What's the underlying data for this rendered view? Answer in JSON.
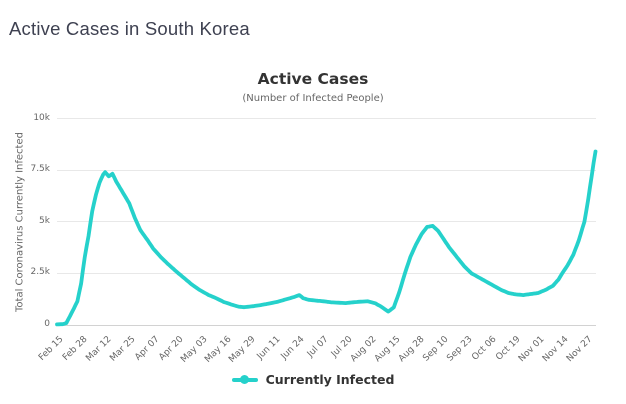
{
  "page": {
    "title": "Active Cases in South Korea"
  },
  "chart_data": {
    "type": "line",
    "title": "Active Cases",
    "subtitle": "(Number of Infected People)",
    "ylabel": "Total Coronavirus Currently Infected",
    "xlabel": "",
    "ylim": [
      0,
      10000
    ],
    "ytick_values": [
      0,
      2500,
      5000,
      7500,
      10000
    ],
    "ytick_labels": [
      "0",
      "2.5k",
      "5k",
      "7.5k",
      "10k"
    ],
    "x_tick_labels": [
      "Feb 15",
      "Feb 28",
      "Mar 12",
      "Mar 25",
      "Apr 07",
      "Apr 20",
      "May 03",
      "May 16",
      "May 29",
      "Jun 11",
      "Jun 24",
      "Jul 07",
      "Jul 20",
      "Aug 02",
      "Aug 15",
      "Aug 28",
      "Sep 10",
      "Sep 23",
      "Oct 06",
      "Oct 19",
      "Nov 01",
      "Nov 14",
      "Nov 27"
    ],
    "x_tick_interval_days": 13,
    "x_total_days": 291,
    "x_unit": "days since Feb 15",
    "grid": true,
    "legend_position": "bottom",
    "colors": {
      "line": "#25d1cb",
      "grid": "#e8e8e8",
      "axis_line": "#d2d2d2",
      "tick_text": "#666666",
      "title_text": "#333333",
      "subtitle_text": "#666666",
      "legend_text": "#333333",
      "page_title_text": "#3e4151"
    },
    "series": [
      {
        "name": "Currently Infected",
        "points": [
          [
            0,
            30
          ],
          [
            3,
            40
          ],
          [
            5,
            90
          ],
          [
            7,
            430
          ],
          [
            9,
            780
          ],
          [
            11,
            1150
          ],
          [
            13,
            2000
          ],
          [
            15,
            3300
          ],
          [
            17,
            4300
          ],
          [
            19,
            5500
          ],
          [
            21,
            6300
          ],
          [
            23,
            6900
          ],
          [
            25,
            7300
          ],
          [
            26,
            7400
          ],
          [
            28,
            7200
          ],
          [
            30,
            7320
          ],
          [
            32,
            6950
          ],
          [
            35,
            6500
          ],
          [
            39,
            5900
          ],
          [
            42,
            5200
          ],
          [
            45,
            4600
          ],
          [
            49,
            4100
          ],
          [
            52,
            3700
          ],
          [
            56,
            3300
          ],
          [
            60,
            2950
          ],
          [
            65,
            2550
          ],
          [
            69,
            2250
          ],
          [
            73,
            1950
          ],
          [
            77,
            1700
          ],
          [
            82,
            1450
          ],
          [
            86,
            1300
          ],
          [
            90,
            1120
          ],
          [
            94,
            1000
          ],
          [
            98,
            890
          ],
          [
            101,
            860
          ],
          [
            105,
            900
          ],
          [
            109,
            950
          ],
          [
            114,
            1030
          ],
          [
            119,
            1120
          ],
          [
            124,
            1250
          ],
          [
            128,
            1350
          ],
          [
            131,
            1450
          ],
          [
            133,
            1300
          ],
          [
            136,
            1220
          ],
          [
            140,
            1180
          ],
          [
            144,
            1150
          ],
          [
            148,
            1100
          ],
          [
            152,
            1080
          ],
          [
            156,
            1060
          ],
          [
            160,
            1100
          ],
          [
            164,
            1130
          ],
          [
            168,
            1150
          ],
          [
            172,
            1050
          ],
          [
            175,
            900
          ],
          [
            179,
            650
          ],
          [
            182,
            850
          ],
          [
            185,
            1600
          ],
          [
            188,
            2500
          ],
          [
            191,
            3300
          ],
          [
            194,
            3900
          ],
          [
            197,
            4400
          ],
          [
            200,
            4750
          ],
          [
            203,
            4800
          ],
          [
            206,
            4550
          ],
          [
            209,
            4150
          ],
          [
            212,
            3750
          ],
          [
            216,
            3300
          ],
          [
            220,
            2850
          ],
          [
            224,
            2500
          ],
          [
            228,
            2300
          ],
          [
            232,
            2100
          ],
          [
            236,
            1900
          ],
          [
            240,
            1700
          ],
          [
            244,
            1550
          ],
          [
            248,
            1480
          ],
          [
            252,
            1450
          ],
          [
            256,
            1500
          ],
          [
            260,
            1550
          ],
          [
            264,
            1700
          ],
          [
            268,
            1900
          ],
          [
            271,
            2200
          ],
          [
            273,
            2500
          ],
          [
            276,
            2900
          ],
          [
            279,
            3400
          ],
          [
            282,
            4100
          ],
          [
            285,
            5000
          ],
          [
            286,
            5500
          ],
          [
            287,
            6050
          ],
          [
            288,
            6650
          ],
          [
            289,
            7250
          ],
          [
            290,
            7850
          ],
          [
            291,
            8400
          ]
        ]
      }
    ]
  }
}
